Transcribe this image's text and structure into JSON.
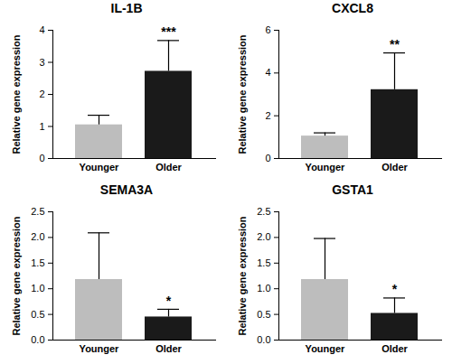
{
  "chart_data": [
    {
      "type": "bar",
      "title": "IL-1B",
      "categories": [
        "Younger",
        "Older"
      ],
      "values": [
        1.05,
        2.72
      ],
      "errors": [
        0.3,
        0.96
      ],
      "colors": [
        "#bdbdbd",
        "#1a1a1a"
      ],
      "ylim": [
        0,
        4
      ],
      "yticks": [
        0,
        1,
        2,
        3,
        4
      ],
      "y_label": "Relative gene expression",
      "annotations": [
        {
          "category": "Older",
          "text": "***"
        }
      ]
    },
    {
      "type": "bar",
      "title": "CXCL8",
      "categories": [
        "Younger",
        "Older"
      ],
      "values": [
        1.05,
        3.22
      ],
      "errors": [
        0.15,
        1.72
      ],
      "colors": [
        "#bdbdbd",
        "#1a1a1a"
      ],
      "ylim": [
        0,
        6
      ],
      "yticks": [
        0,
        2,
        4,
        6
      ],
      "y_label": "Relative gene expression",
      "annotations": [
        {
          "category": "Older",
          "text": "**"
        }
      ]
    },
    {
      "type": "bar",
      "title": "SEMA3A",
      "categories": [
        "Younger",
        "Older"
      ],
      "values": [
        1.18,
        0.45
      ],
      "errors": [
        0.91,
        0.15
      ],
      "colors": [
        "#bdbdbd",
        "#1a1a1a"
      ],
      "ylim": [
        0,
        2.5
      ],
      "yticks": [
        {
          "value": 0,
          "label": "0.0"
        },
        {
          "value": 0.5,
          "label": "0.5"
        },
        {
          "value": 1,
          "label": "1.0"
        },
        {
          "value": 1.5,
          "label": "1.5"
        },
        {
          "value": 2,
          "label": "2.0"
        },
        {
          "value": 2.5,
          "label": "2.5"
        }
      ],
      "y_label": "Relative gene expression",
      "annotations": [
        {
          "category": "Older",
          "text": "*"
        }
      ]
    },
    {
      "type": "bar",
      "title": "GSTA1",
      "categories": [
        "Younger",
        "Older"
      ],
      "values": [
        1.18,
        0.52
      ],
      "errors": [
        0.8,
        0.3
      ],
      "colors": [
        "#bdbdbd",
        "#1a1a1a"
      ],
      "ylim": [
        0,
        2.5
      ],
      "yticks": [
        {
          "value": 0,
          "label": "0.0"
        },
        {
          "value": 0.5,
          "label": "0.5"
        },
        {
          "value": 1,
          "label": "1.0"
        },
        {
          "value": 1.5,
          "label": "1.5"
        },
        {
          "value": 2,
          "label": "2.0"
        },
        {
          "value": 2.5,
          "label": "2.5"
        }
      ],
      "y_label": "Relative gene expression",
      "annotations": [
        {
          "category": "Older",
          "text": "*"
        }
      ]
    }
  ]
}
